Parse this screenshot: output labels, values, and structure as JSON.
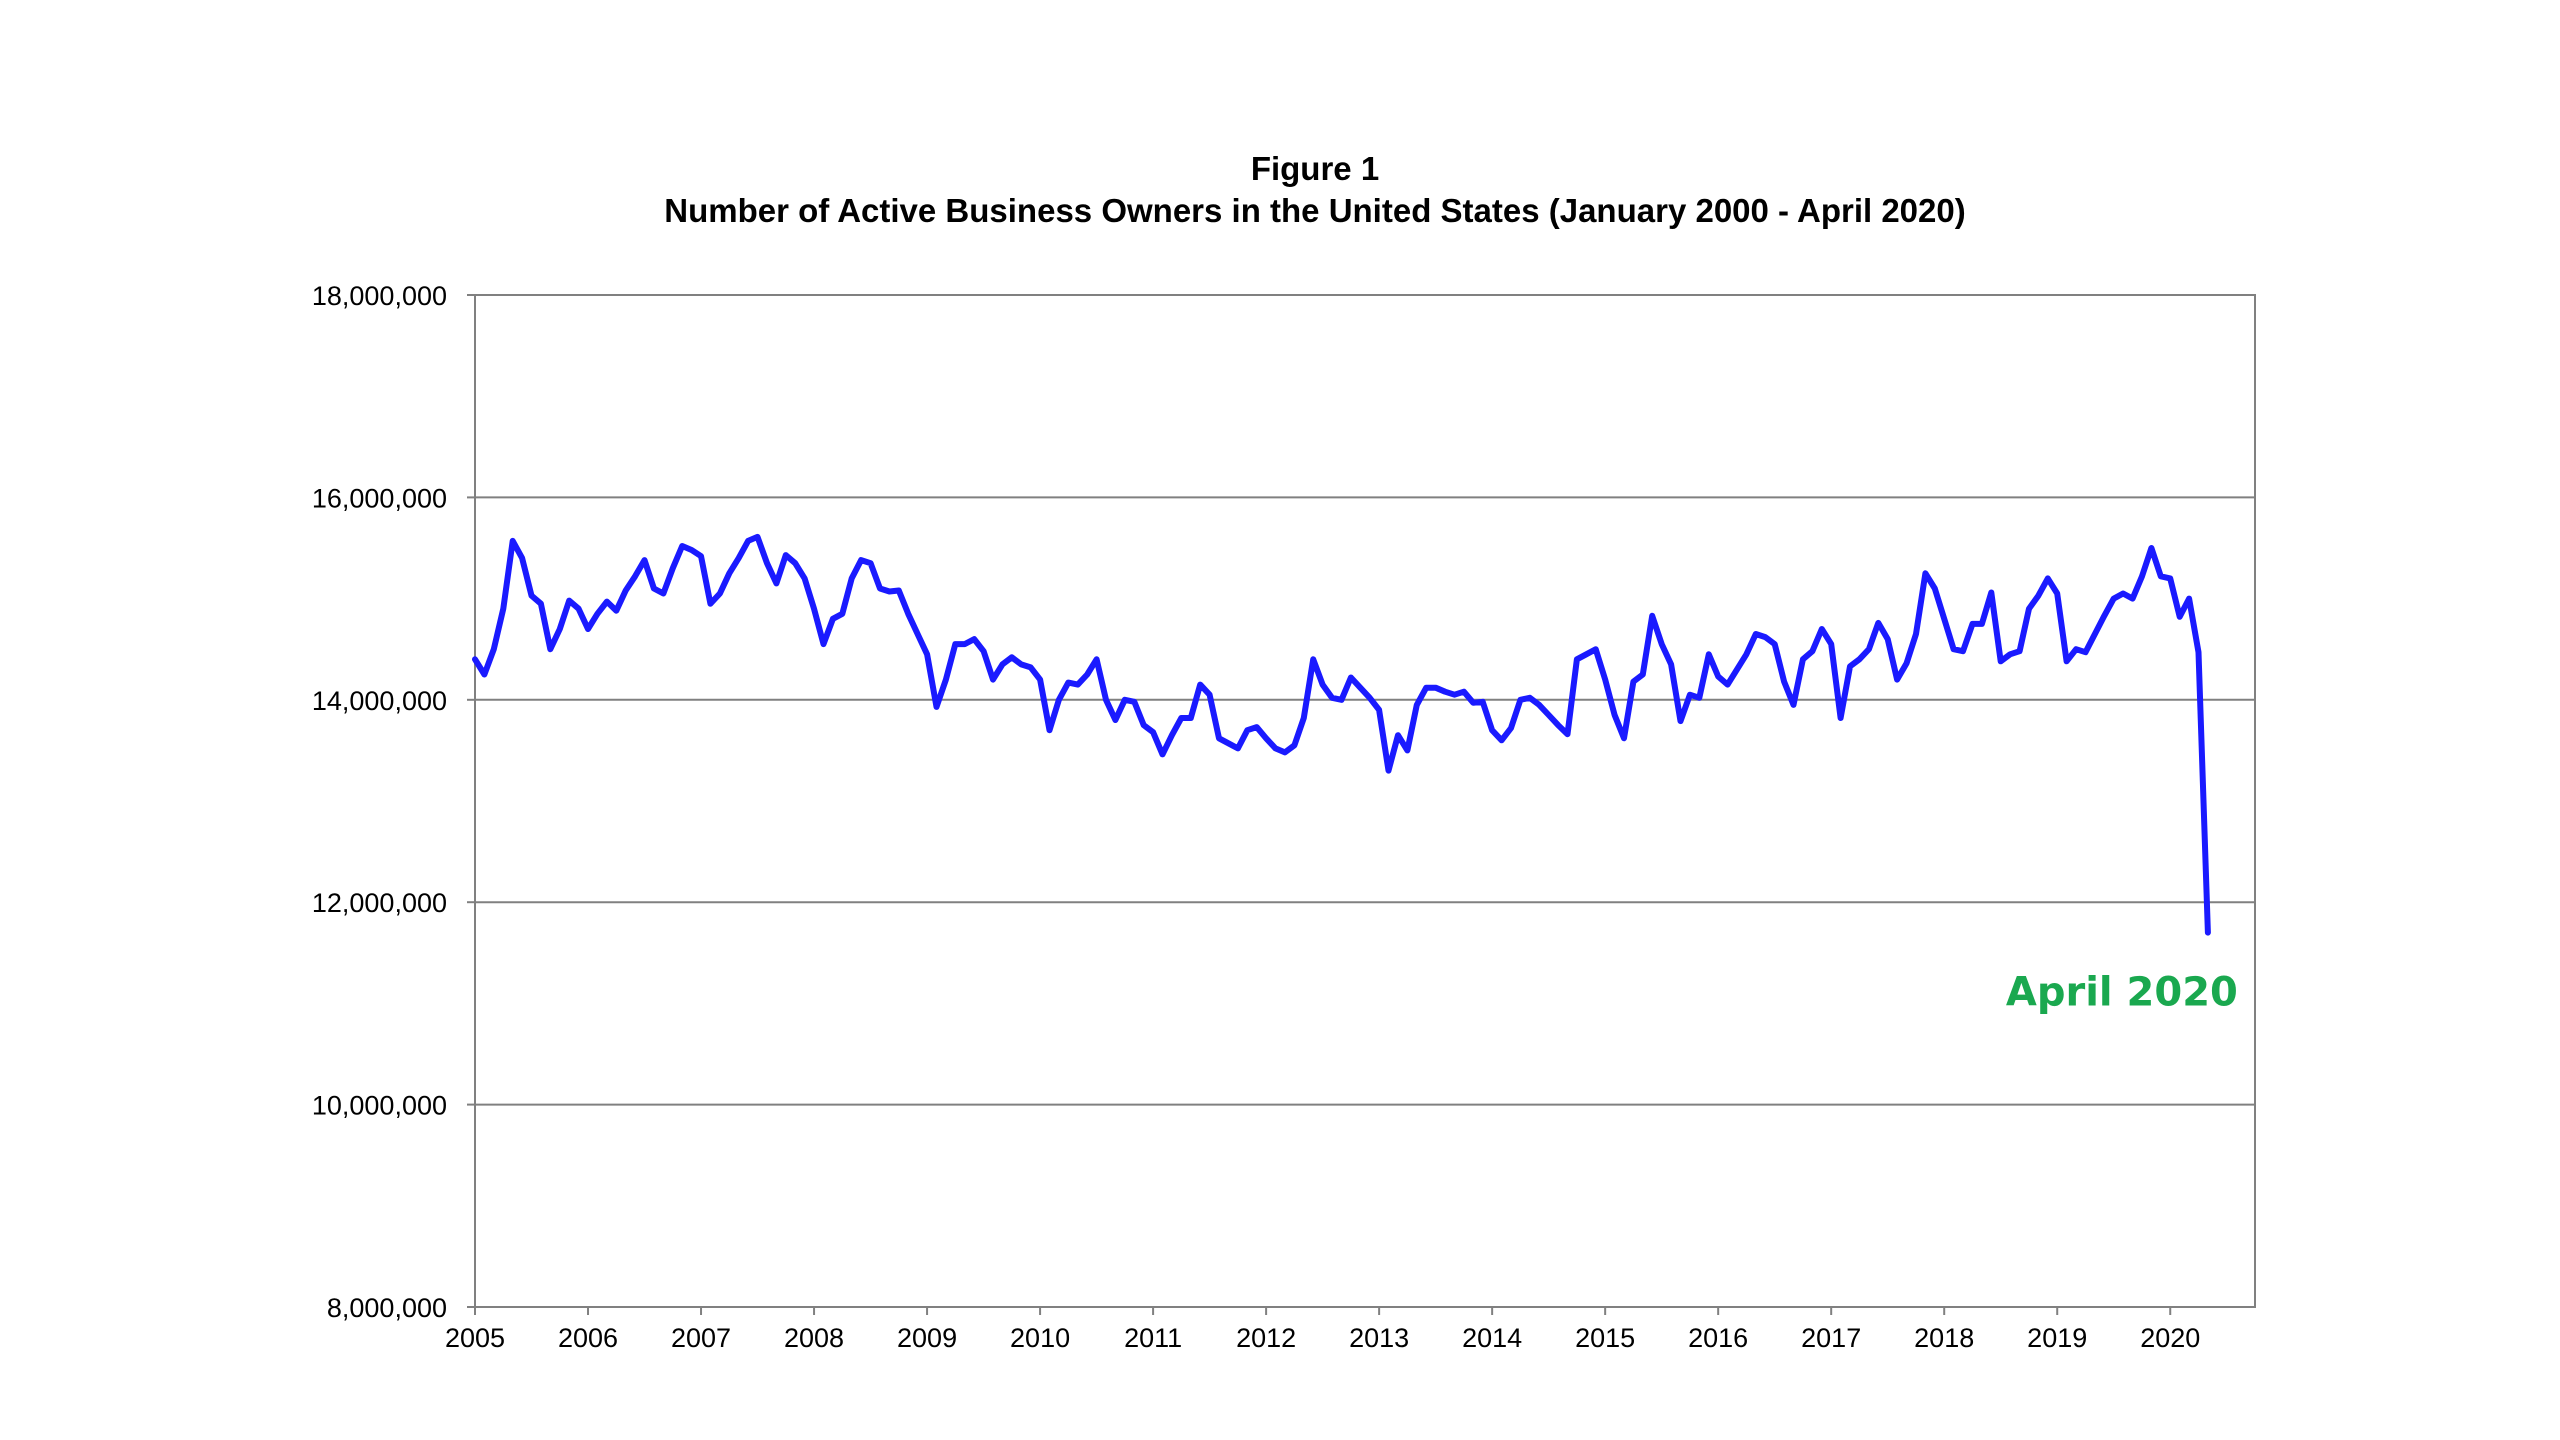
{
  "chart_data": {
    "type": "line",
    "title": "Figure 1",
    "subtitle": "Number of Active Business Owners in the United States (January 2000 - April 2020)",
    "xlabel": "",
    "ylabel": "",
    "xlim": [
      2005,
      2020.75
    ],
    "ylim": [
      8000000,
      18000000
    ],
    "x_ticks": [
      2005,
      2006,
      2007,
      2008,
      2009,
      2010,
      2011,
      2012,
      2013,
      2014,
      2015,
      2016,
      2017,
      2018,
      2019,
      2020
    ],
    "y_ticks": [
      8000000,
      10000000,
      12000000,
      14000000,
      16000000,
      18000000
    ],
    "y_tick_labels": [
      "8,000,000",
      "10,000,000",
      "12,000,000",
      "14,000,000",
      "16,000,000",
      "18,000,000"
    ],
    "grid": "horizontal",
    "line_color": "#1a1aff",
    "annotation": {
      "text": "April 2020",
      "color": "#1aa84f"
    },
    "series": [
      {
        "x_start": 2005,
        "x_step_months": 1,
        "values": [
          14400000,
          14250000,
          14500000,
          14900000,
          15570000,
          15400000,
          15030000,
          14950000,
          14500000,
          14700000,
          14980000,
          14900000,
          14700000,
          14850000,
          14970000,
          14880000,
          15080000,
          15220000,
          15380000,
          15100000,
          15050000,
          15300000,
          15520000,
          15480000,
          15420000,
          14950000,
          15050000,
          15250000,
          15400000,
          15570000,
          15610000,
          15350000,
          15150000,
          15430000,
          15350000,
          15200000,
          14900000,
          14550000,
          14800000,
          14850000,
          15200000,
          15380000,
          15350000,
          15100000,
          15070000,
          15080000,
          14850000,
          14650000,
          14450000,
          13930000,
          14200000,
          14550000,
          14550000,
          14600000,
          14480000,
          14200000,
          14350000,
          14420000,
          14350000,
          14320000,
          14200000,
          13700000,
          14000000,
          14170000,
          14150000,
          14250000,
          14400000,
          14000000,
          13800000,
          14000000,
          13980000,
          13750000,
          13680000,
          13460000,
          13650000,
          13820000,
          13820000,
          14150000,
          14050000,
          13620000,
          13570000,
          13520000,
          13700000,
          13730000,
          13620000,
          13520000,
          13480000,
          13550000,
          13820000,
          14400000,
          14150000,
          14020000,
          14000000,
          14220000,
          14120000,
          14020000,
          13900000,
          13300000,
          13650000,
          13500000,
          13950000,
          14120000,
          14120000,
          14080000,
          14050000,
          14080000,
          13970000,
          13980000,
          13700000,
          13600000,
          13720000,
          14000000,
          14020000,
          13950000,
          13850000,
          13750000,
          13660000,
          14400000,
          14450000,
          14500000,
          14200000,
          13850000,
          13620000,
          14180000,
          14250000,
          14830000,
          14550000,
          14350000,
          13790000,
          14050000,
          14020000,
          14450000,
          14230000,
          14150000,
          14300000,
          14450000,
          14650000,
          14620000,
          14550000,
          14180000,
          13950000,
          14400000,
          14480000,
          14700000,
          14550000,
          13820000,
          14330000,
          14400000,
          14500000,
          14760000,
          14600000,
          14200000,
          14360000,
          14650000,
          15250000,
          15100000,
          14800000,
          14500000,
          14480000,
          14750000,
          14750000,
          15060000,
          14380000,
          14450000,
          14480000,
          14900000,
          15030000,
          15200000,
          15050000,
          14380000,
          14500000,
          14470000,
          14650000,
          14830000,
          15000000,
          15050000,
          15000000,
          15220000,
          15500000,
          15220000,
          15200000,
          14820000,
          15000000,
          14470000,
          11700000
        ]
      }
    ]
  }
}
